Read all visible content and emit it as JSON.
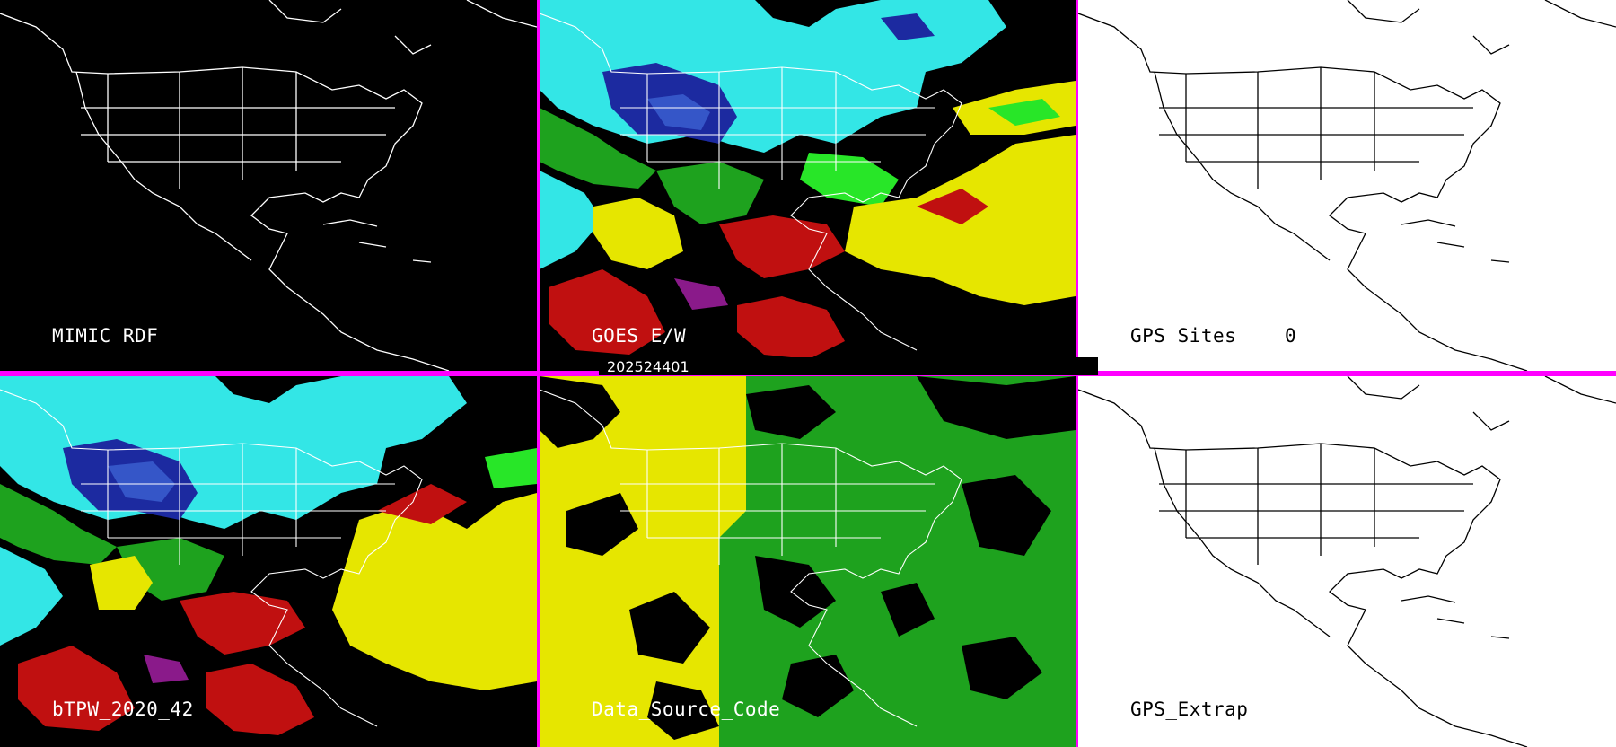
{
  "panels": {
    "mimic_rdf": {
      "label": "MIMIC RDF"
    },
    "goes_ew": {
      "label": "GOES E/W"
    },
    "gps_sites": {
      "label": "GPS Sites",
      "count": "0"
    },
    "btpw": {
      "label": "bTPW_2020_42"
    },
    "data_source_code": {
      "label": "Data_Source_Code"
    },
    "gps_extrap": {
      "label": "GPS_Extrap"
    }
  },
  "timestamp": "202524401",
  "colors": {
    "divider": "#ff00ff",
    "cyan": "#33e6e6",
    "navy": "#1c2aa0",
    "blue": "#3556c8",
    "green": "#1ea21e",
    "bright_green": "#28e628",
    "yellow": "#e6e600",
    "red": "#c01010",
    "purple": "#8a1a8a"
  }
}
